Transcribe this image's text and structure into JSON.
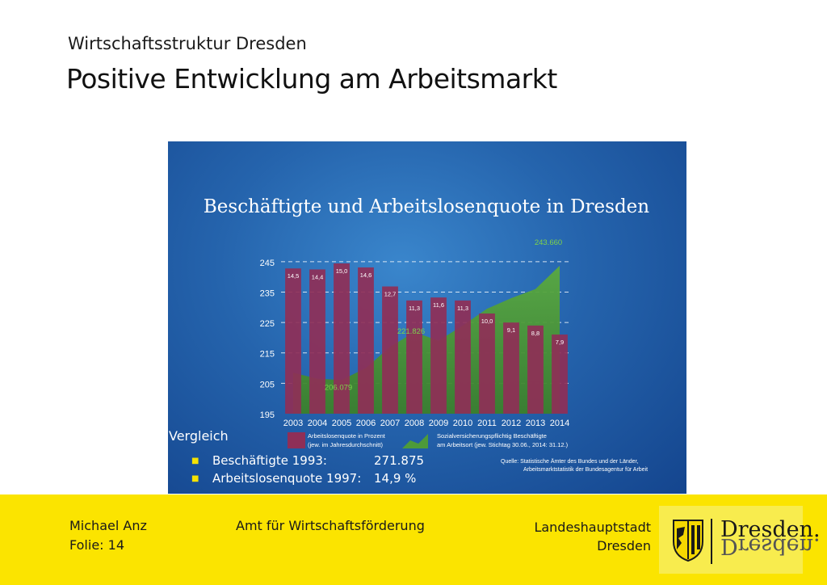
{
  "header": {
    "subtitle": "Wirtschaftsstruktur Dresden",
    "title": "Positive Entwicklung am Arbeitsmarkt"
  },
  "colors": {
    "bar": "#8f2f57",
    "area": "#4d9a3a",
    "panel": "#2564ad",
    "footer": "#fbe400"
  },
  "chart_data": {
    "type": "bar",
    "title": "Beschäftigte und Arbeitslosenquote in Dresden",
    "categories": [
      "2003",
      "2004",
      "2005",
      "2006",
      "2007",
      "2008",
      "2009",
      "2010",
      "2011",
      "2012",
      "2013",
      "2014"
    ],
    "series": [
      {
        "name": "Arbeitslosenquote in Prozent (jew. im Jahresdurchschnitt)",
        "type": "bar",
        "values": [
          14.5,
          14.4,
          15.0,
          14.6,
          12.7,
          11.3,
          11.6,
          11.3,
          10.0,
          9.1,
          8.8,
          7.9
        ],
        "labels": [
          "14,5",
          "14,4",
          "15,0",
          "14,6",
          "12,7",
          "11,3",
          "11,6",
          "11,3",
          "10,0",
          "9,1",
          "8,8",
          "7,9"
        ]
      },
      {
        "name": "Sozialversicherungspflichtig Beschäftigte am Arbeitsort (jew. Stichtag 30.06., 2014: 31.12.)",
        "type": "area",
        "values": [
          208.5,
          206.5,
          206.079,
          210,
          217,
          221.826,
          219,
          224,
          229.5,
          233,
          236,
          243.66
        ]
      }
    ],
    "annotations": [
      "206.079",
      "221.826",
      "243.660"
    ],
    "y_ticks": [
      "195",
      "205",
      "215",
      "225",
      "235",
      "245"
    ],
    "ylim": [
      195,
      250
    ],
    "grid": "dashed",
    "legend_position": "bottom",
    "source": "Quelle:  Statistische Ämter des Bundes und der Länder,",
    "source2": "Arbeitsmarktstatistik der Bundesagentur für Arbeit"
  },
  "comparison": {
    "heading": "Vergleich",
    "items": [
      {
        "label": "Beschäftigte 1993:",
        "value": "271.875"
      },
      {
        "label": "Arbeitslosenquote 1997:",
        "value": "14,9 %"
      }
    ]
  },
  "footer": {
    "author": "Michael Anz",
    "slide": "Folie: 14",
    "department": "Amt für Wirtschaftsförderung",
    "city_line1": "Landeshauptstadt",
    "city_line2": "Dresden",
    "logo_text": "Dresden."
  }
}
